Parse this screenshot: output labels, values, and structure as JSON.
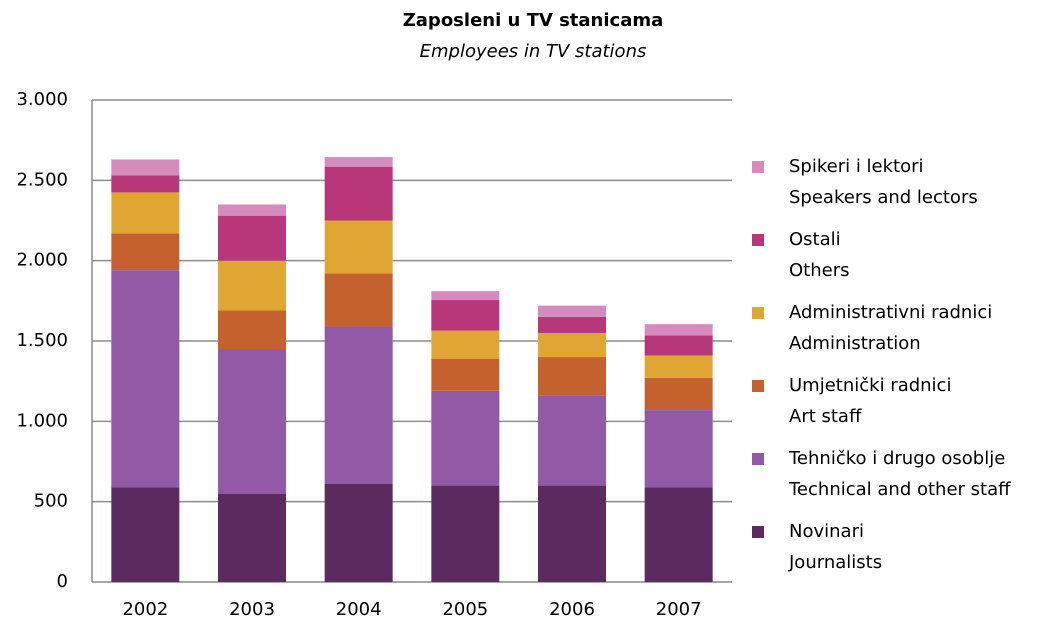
{
  "chart_data": {
    "type": "bar",
    "stacked": true,
    "title": "Zaposleni u TV stanicama",
    "subtitle": "Employees in TV stations",
    "categories": [
      "2002",
      "2003",
      "2004",
      "2005",
      "2006",
      "2007"
    ],
    "series": [
      {
        "name": "Novinari",
        "name_en": "Journalists",
        "color": "#5b2a5e",
        "values": [
          590,
          550,
          610,
          600,
          600,
          590
        ]
      },
      {
        "name": "Tehničko i drugo osoblje",
        "name_en": "Technical and other staff",
        "color": "#9159a6",
        "values": [
          1350,
          900,
          980,
          590,
          560,
          480
        ]
      },
      {
        "name": "Umjetnički radnici",
        "name_en": "Art staff",
        "color": "#c5612f",
        "values": [
          230,
          240,
          330,
          200,
          240,
          200
        ]
      },
      {
        "name": "Administrativni radnici",
        "name_en": "Administration",
        "color": "#e0a634",
        "values": [
          255,
          310,
          330,
          175,
          150,
          140
        ]
      },
      {
        "name": "Ostali",
        "name_en": "Others",
        "color": "#b8367a",
        "values": [
          105,
          280,
          335,
          190,
          100,
          125
        ]
      },
      {
        "name": "Spikeri i lektori",
        "name_en": "Speakers and lectors",
        "color": "#d68bbe",
        "values": [
          100,
          70,
          60,
          55,
          70,
          70
        ]
      }
    ],
    "ylim": [
      0,
      3000
    ],
    "yticks": [
      0,
      500,
      {
        "value": 1000,
        "label": "1.000"
      },
      {
        "value": 1500,
        "label": "1.500"
      },
      {
        "value": 2000,
        "label": "2.000"
      },
      {
        "value": 2500,
        "label": "2.500"
      },
      {
        "value": 3000,
        "label": "3.000"
      }
    ],
    "grid": true,
    "legend": "right"
  }
}
